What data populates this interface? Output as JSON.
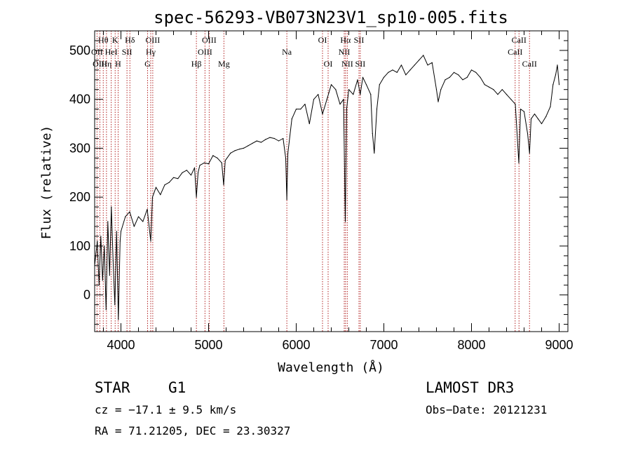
{
  "chart_data": {
    "type": "line",
    "title": "spec-56293-VB073N23V1_sp10-005.fits",
    "xlabel": "Wavelength (Å)",
    "ylabel": "Flux (relative)",
    "xlim": [
      3700,
      9100
    ],
    "ylim": [
      -75,
      540
    ],
    "xticks": [
      4000,
      5000,
      6000,
      7000,
      8000,
      9000
    ],
    "yticks": [
      0,
      100,
      200,
      300,
      400,
      500
    ],
    "xticks_minor_step": 200,
    "yticks_minor_step": 20,
    "series": [
      {
        "name": "flux",
        "color": "#000000",
        "points": [
          [
            3700,
            60
          ],
          [
            3730,
            110
          ],
          [
            3750,
            20
          ],
          [
            3770,
            120
          ],
          [
            3790,
            30
          ],
          [
            3810,
            100
          ],
          [
            3830,
            -30
          ],
          [
            3850,
            150
          ],
          [
            3870,
            40
          ],
          [
            3890,
            180
          ],
          [
            3910,
            70
          ],
          [
            3930,
            -20
          ],
          [
            3950,
            130
          ],
          [
            3970,
            -50
          ],
          [
            3990,
            110
          ],
          [
            4000,
            130
          ],
          [
            4050,
            160
          ],
          [
            4100,
            170
          ],
          [
            4150,
            140
          ],
          [
            4200,
            160
          ],
          [
            4250,
            150
          ],
          [
            4300,
            175
          ],
          [
            4340,
            110
          ],
          [
            4360,
            200
          ],
          [
            4400,
            220
          ],
          [
            4450,
            205
          ],
          [
            4500,
            225
          ],
          [
            4550,
            230
          ],
          [
            4600,
            240
          ],
          [
            4650,
            238
          ],
          [
            4700,
            250
          ],
          [
            4750,
            255
          ],
          [
            4800,
            245
          ],
          [
            4840,
            260
          ],
          [
            4861,
            200
          ],
          [
            4880,
            250
          ],
          [
            4900,
            265
          ],
          [
            4950,
            270
          ],
          [
            5000,
            268
          ],
          [
            5050,
            285
          ],
          [
            5100,
            280
          ],
          [
            5150,
            270
          ],
          [
            5172,
            225
          ],
          [
            5190,
            275
          ],
          [
            5250,
            290
          ],
          [
            5300,
            295
          ],
          [
            5350,
            298
          ],
          [
            5400,
            300
          ],
          [
            5450,
            305
          ],
          [
            5500,
            310
          ],
          [
            5550,
            315
          ],
          [
            5600,
            312
          ],
          [
            5650,
            318
          ],
          [
            5700,
            322
          ],
          [
            5750,
            320
          ],
          [
            5800,
            315
          ],
          [
            5850,
            320
          ],
          [
            5880,
            280
          ],
          [
            5893,
            195
          ],
          [
            5905,
            290
          ],
          [
            5950,
            360
          ],
          [
            6000,
            380
          ],
          [
            6050,
            380
          ],
          [
            6100,
            390
          ],
          [
            6150,
            350
          ],
          [
            6200,
            400
          ],
          [
            6250,
            410
          ],
          [
            6300,
            370
          ],
          [
            6350,
            400
          ],
          [
            6400,
            430
          ],
          [
            6450,
            420
          ],
          [
            6500,
            390
          ],
          [
            6540,
            400
          ],
          [
            6560,
            150
          ],
          [
            6575,
            380
          ],
          [
            6600,
            420
          ],
          [
            6650,
            410
          ],
          [
            6700,
            440
          ],
          [
            6730,
            410
          ],
          [
            6760,
            445
          ],
          [
            6800,
            430
          ],
          [
            6850,
            410
          ],
          [
            6870,
            330
          ],
          [
            6890,
            290
          ],
          [
            6920,
            380
          ],
          [
            6950,
            430
          ],
          [
            7000,
            445
          ],
          [
            7050,
            455
          ],
          [
            7100,
            460
          ],
          [
            7150,
            455
          ],
          [
            7200,
            470
          ],
          [
            7250,
            450
          ],
          [
            7300,
            460
          ],
          [
            7350,
            470
          ],
          [
            7400,
            480
          ],
          [
            7450,
            490
          ],
          [
            7500,
            470
          ],
          [
            7550,
            475
          ],
          [
            7600,
            420
          ],
          [
            7620,
            395
          ],
          [
            7650,
            420
          ],
          [
            7700,
            440
          ],
          [
            7750,
            445
          ],
          [
            7800,
            455
          ],
          [
            7850,
            450
          ],
          [
            7900,
            440
          ],
          [
            7950,
            445
          ],
          [
            8000,
            460
          ],
          [
            8050,
            455
          ],
          [
            8100,
            445
          ],
          [
            8150,
            430
          ],
          [
            8200,
            425
          ],
          [
            8250,
            420
          ],
          [
            8300,
            410
          ],
          [
            8350,
            420
          ],
          [
            8400,
            410
          ],
          [
            8450,
            400
          ],
          [
            8500,
            390
          ],
          [
            8540,
            270
          ],
          [
            8560,
            380
          ],
          [
            8600,
            375
          ],
          [
            8640,
            330
          ],
          [
            8662,
            290
          ],
          [
            8680,
            360
          ],
          [
            8720,
            370
          ],
          [
            8760,
            360
          ],
          [
            8800,
            350
          ],
          [
            8850,
            365
          ],
          [
            8900,
            385
          ],
          [
            8930,
            430
          ],
          [
            8960,
            450
          ],
          [
            8980,
            470
          ],
          [
            9000,
            430
          ]
        ]
      }
    ],
    "lines": [
      {
        "name": "Hθ",
        "wave": 3798,
        "row": 1
      },
      {
        "name": "OII",
        "wave": 3727,
        "row": 2
      },
      {
        "name": "OIII",
        "wave": 3760,
        "row": 3
      },
      {
        "name": "Hη",
        "wave": 3835,
        "row": 3
      },
      {
        "name": "HeI",
        "wave": 3889,
        "row": 2
      },
      {
        "name": "K",
        "wave": 3934,
        "row": 1
      },
      {
        "name": "H",
        "wave": 3968,
        "row": 3
      },
      {
        "name": "SII",
        "wave": 4069,
        "row": 2
      },
      {
        "name": "Hδ",
        "wave": 4102,
        "row": 1
      },
      {
        "name": "OIII",
        "wave": 4363,
        "row": 1
      },
      {
        "name": "Hγ",
        "wave": 4340,
        "row": 2
      },
      {
        "name": "G",
        "wave": 4304,
        "row": 3
      },
      {
        "name": "Hβ",
        "wave": 4861,
        "row": 3
      },
      {
        "name": "OIII",
        "wave": 4959,
        "row": 2
      },
      {
        "name": "OIII",
        "wave": 5007,
        "row": 1
      },
      {
        "name": "Mg",
        "wave": 5175,
        "row": 3
      },
      {
        "name": "Na",
        "wave": 5893,
        "row": 2
      },
      {
        "name": "OI",
        "wave": 6300,
        "row": 1
      },
      {
        "name": "OI",
        "wave": 6364,
        "row": 3
      },
      {
        "name": "NII",
        "wave": 6548,
        "row": 2
      },
      {
        "name": "Hα",
        "wave": 6563,
        "row": 1
      },
      {
        "name": "NII",
        "wave": 6583,
        "row": 3
      },
      {
        "name": "SII",
        "wave": 6716,
        "row": 1
      },
      {
        "name": "SII",
        "wave": 6731,
        "row": 3
      },
      {
        "name": "CaII",
        "wave": 8498,
        "row": 2
      },
      {
        "name": "CaII",
        "wave": 8542,
        "row": 1
      },
      {
        "name": "CaII",
        "wave": 8662,
        "row": 3
      }
    ]
  },
  "info": {
    "object_class": "STAR",
    "subclass": "G1",
    "release": "LAMOST DR3",
    "cz": "cz = −17.1 ± 9.5 km/s",
    "obs_date": "Obs−Date: 20121231",
    "coords": "RA =  71.21205, DEC =  23.30327"
  },
  "colors": {
    "spectrum": "#000000",
    "line_marker": "#b22222",
    "axes": "#000000"
  }
}
